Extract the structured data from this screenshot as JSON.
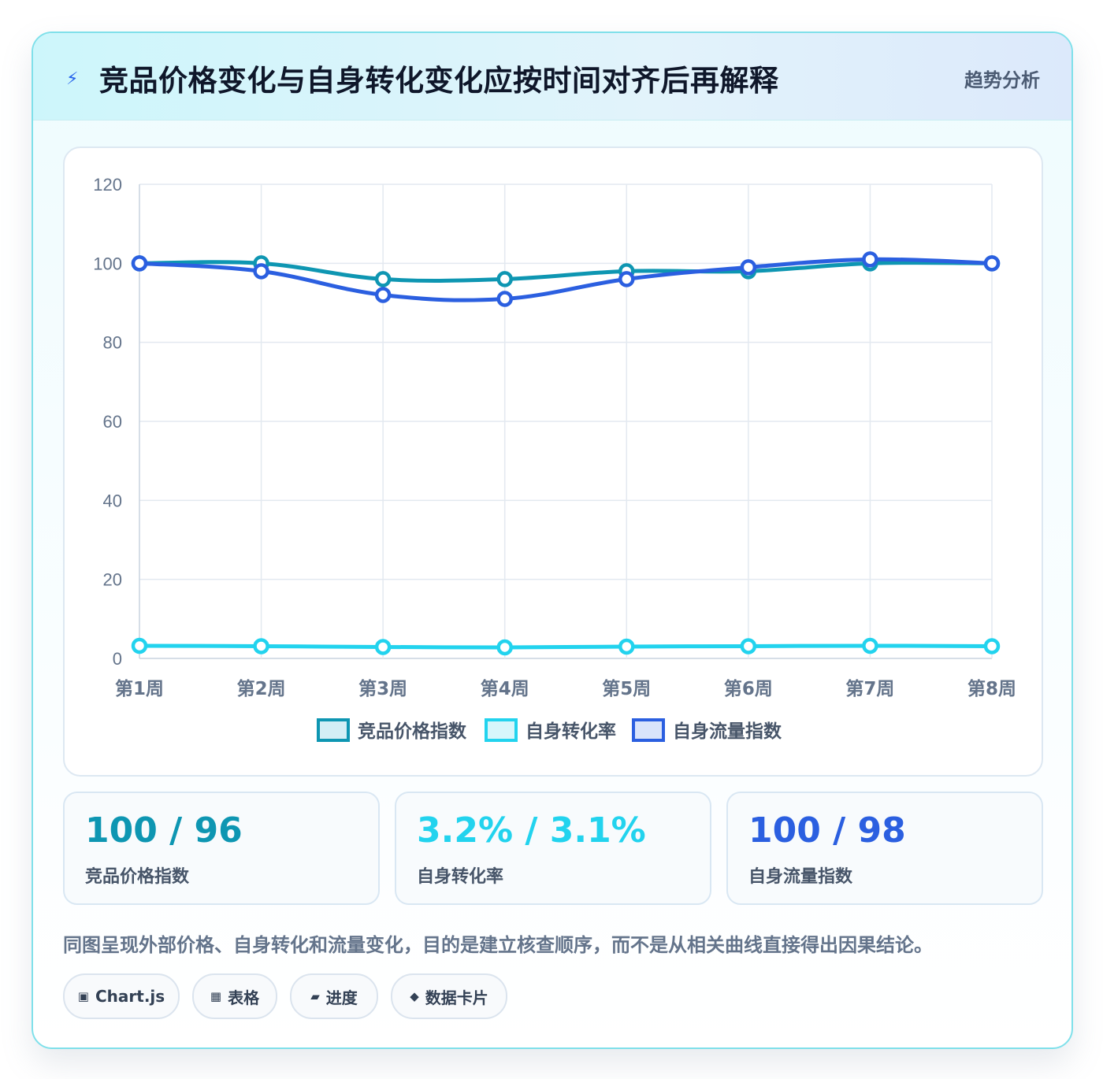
{
  "header": {
    "icon": "lightning-icon",
    "title": "竞品价格变化与自身转化变化应按时间对齐后再解释",
    "tag": "趋势分析"
  },
  "chart_data": {
    "type": "line",
    "categories": [
      "第1周",
      "第2周",
      "第3周",
      "第4周",
      "第5周",
      "第6周",
      "第7周",
      "第8周"
    ],
    "ylim": [
      0,
      120
    ],
    "yticks": [
      0,
      20,
      40,
      60,
      80,
      100,
      120
    ],
    "grid": true,
    "legend_position": "bottom",
    "series": [
      {
        "name": "竞品价格指数",
        "color": "#0e96b2",
        "fill": "#d3eef5",
        "values": [
          100,
          100,
          96,
          96,
          98,
          98,
          100,
          100
        ]
      },
      {
        "name": "自身转化率",
        "color": "#22d3ee",
        "fill": "#d6f6fb",
        "values": [
          3.2,
          3.1,
          2.9,
          2.8,
          3.0,
          3.1,
          3.2,
          3.1
        ]
      },
      {
        "name": "自身流量指数",
        "color": "#2b5fe0",
        "fill": "#d9e4fb",
        "values": [
          100,
          98,
          92,
          91,
          96,
          99,
          101,
          100
        ]
      }
    ]
  },
  "stats": [
    {
      "value": "100 / 96",
      "label": "竞品价格指数",
      "color": "#0e96b2"
    },
    {
      "value": "3.2% / 3.1%",
      "label": "自身转化率",
      "color": "#22d3ee"
    },
    {
      "value": "100 / 98",
      "label": "自身流量指数",
      "color": "#2b5fe0"
    }
  ],
  "note": "同图呈现外部价格、自身转化和流量变化，目的是建立核查顺序，而不是从相关曲线直接得出因果结论。",
  "chips": [
    {
      "icon": "square-icon",
      "glyph": "▣",
      "label": "Chart.js"
    },
    {
      "icon": "table-icon",
      "glyph": "▦",
      "label": "表格"
    },
    {
      "icon": "progress-icon",
      "glyph": "▰",
      "label": "进度"
    },
    {
      "icon": "diamond-icon",
      "glyph": "◆",
      "label": "数据卡片"
    }
  ]
}
